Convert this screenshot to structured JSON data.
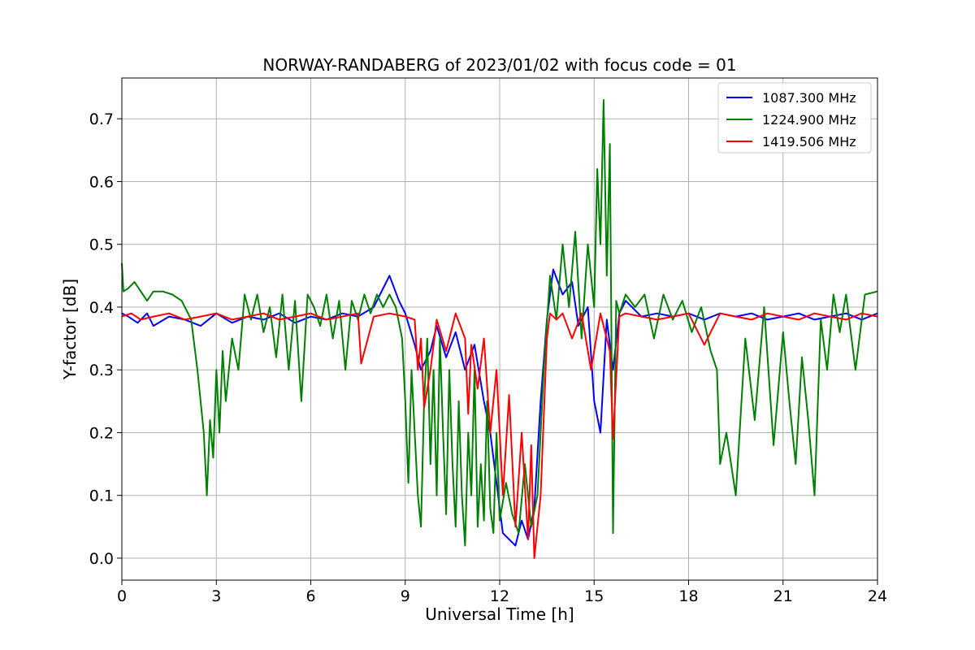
{
  "chart_data": {
    "type": "line",
    "title": "NORWAY-RANDABERG of 2023/01/02 with focus code = 01",
    "xlabel": "Universal Time [h]",
    "ylabel": "Y-factor [dB]",
    "xlim": [
      0,
      24
    ],
    "ylim": [
      -0.035,
      0.765
    ],
    "xticks": [
      0,
      3,
      6,
      9,
      12,
      15,
      18,
      21,
      24
    ],
    "xtick_labels": [
      "0",
      "3",
      "6",
      "9",
      "12",
      "15",
      "18",
      "21",
      "24"
    ],
    "yticks": [
      0.0,
      0.1,
      0.2,
      0.3,
      0.4,
      0.5,
      0.6,
      0.7
    ],
    "ytick_labels": [
      "0.0",
      "0.1",
      "0.2",
      "0.3",
      "0.4",
      "0.5",
      "0.6",
      "0.7"
    ],
    "grid": true,
    "legend_position": "top-right",
    "series": [
      {
        "name": "1087.300 MHz",
        "color": "#0000ff",
        "x": [
          0,
          0.2,
          0.5,
          0.8,
          1.0,
          1.5,
          2.0,
          2.5,
          3.0,
          3.5,
          4.0,
          4.5,
          5.0,
          5.5,
          6.0,
          6.5,
          7.0,
          7.5,
          8.0,
          8.2,
          8.5,
          8.8,
          9.0,
          9.3,
          9.5,
          9.8,
          10.0,
          10.3,
          10.6,
          10.9,
          11.2,
          11.5,
          11.7,
          11.9,
          12.1,
          12.3,
          12.5,
          12.7,
          12.9,
          13.1,
          13.3,
          13.5,
          13.7,
          14.0,
          14.3,
          14.5,
          14.8,
          15.0,
          15.2,
          15.4,
          15.6,
          15.8,
          16.0,
          16.5,
          17.0,
          17.5,
          18.0,
          18.5,
          19.0,
          19.5,
          20.0,
          20.5,
          21.0,
          21.5,
          22.0,
          22.5,
          23.0,
          23.5,
          24.0
        ],
        "y": [
          0.39,
          0.385,
          0.375,
          0.39,
          0.37,
          0.385,
          0.38,
          0.37,
          0.39,
          0.375,
          0.385,
          0.38,
          0.39,
          0.375,
          0.385,
          0.38,
          0.39,
          0.385,
          0.4,
          0.42,
          0.45,
          0.41,
          0.39,
          0.34,
          0.3,
          0.33,
          0.37,
          0.32,
          0.36,
          0.3,
          0.34,
          0.25,
          0.2,
          0.12,
          0.04,
          0.03,
          0.02,
          0.06,
          0.03,
          0.08,
          0.25,
          0.38,
          0.46,
          0.42,
          0.44,
          0.37,
          0.4,
          0.25,
          0.2,
          0.38,
          0.3,
          0.39,
          0.41,
          0.385,
          0.39,
          0.385,
          0.39,
          0.38,
          0.39,
          0.385,
          0.39,
          0.38,
          0.385,
          0.39,
          0.38,
          0.385,
          0.39,
          0.38,
          0.39
        ]
      },
      {
        "name": "1224.900 MHz",
        "color": "#008000",
        "x": [
          0,
          0.05,
          0.2,
          0.4,
          0.6,
          0.8,
          1.0,
          1.3,
          1.6,
          1.9,
          2.2,
          2.4,
          2.5,
          2.6,
          2.7,
          2.8,
          2.9,
          3.0,
          3.1,
          3.2,
          3.3,
          3.5,
          3.7,
          3.9,
          4.1,
          4.3,
          4.5,
          4.7,
          4.9,
          5.1,
          5.3,
          5.5,
          5.7,
          5.9,
          6.1,
          6.3,
          6.5,
          6.7,
          6.9,
          7.1,
          7.3,
          7.5,
          7.7,
          7.9,
          8.1,
          8.3,
          8.5,
          8.7,
          8.9,
          9.0,
          9.1,
          9.2,
          9.3,
          9.4,
          9.5,
          9.6,
          9.7,
          9.8,
          9.9,
          10.0,
          10.1,
          10.2,
          10.3,
          10.4,
          10.5,
          10.6,
          10.7,
          10.8,
          10.9,
          11.0,
          11.1,
          11.2,
          11.3,
          11.4,
          11.5,
          11.6,
          11.7,
          11.8,
          11.9,
          12.0,
          12.2,
          12.4,
          12.6,
          12.8,
          13.0,
          13.2,
          13.4,
          13.6,
          13.8,
          14.0,
          14.2,
          14.4,
          14.6,
          14.8,
          15.0,
          15.1,
          15.2,
          15.3,
          15.4,
          15.5,
          15.6,
          15.7,
          15.8,
          16.0,
          16.3,
          16.6,
          16.9,
          17.2,
          17.5,
          17.8,
          18.1,
          18.4,
          18.7,
          18.9,
          19.0,
          19.2,
          19.5,
          19.8,
          20.1,
          20.4,
          20.7,
          21.0,
          21.2,
          21.4,
          21.6,
          21.8,
          22.0,
          22.2,
          22.4,
          22.6,
          22.8,
          23.0,
          23.3,
          23.6,
          24.0
        ],
        "y": [
          0.47,
          0.425,
          0.43,
          0.44,
          0.425,
          0.41,
          0.425,
          0.425,
          0.42,
          0.41,
          0.38,
          0.3,
          0.25,
          0.2,
          0.1,
          0.22,
          0.16,
          0.3,
          0.2,
          0.33,
          0.25,
          0.35,
          0.3,
          0.42,
          0.38,
          0.42,
          0.36,
          0.4,
          0.32,
          0.42,
          0.3,
          0.41,
          0.25,
          0.42,
          0.4,
          0.37,
          0.42,
          0.35,
          0.41,
          0.3,
          0.41,
          0.38,
          0.42,
          0.39,
          0.42,
          0.4,
          0.42,
          0.4,
          0.35,
          0.25,
          0.12,
          0.3,
          0.2,
          0.1,
          0.05,
          0.25,
          0.35,
          0.15,
          0.3,
          0.1,
          0.35,
          0.2,
          0.07,
          0.3,
          0.15,
          0.05,
          0.25,
          0.1,
          0.02,
          0.2,
          0.1,
          0.3,
          0.05,
          0.15,
          0.06,
          0.25,
          0.08,
          0.04,
          0.2,
          0.06,
          0.12,
          0.07,
          0.04,
          0.15,
          0.05,
          0.1,
          0.3,
          0.45,
          0.38,
          0.5,
          0.4,
          0.52,
          0.35,
          0.5,
          0.4,
          0.62,
          0.5,
          0.73,
          0.45,
          0.66,
          0.04,
          0.41,
          0.39,
          0.42,
          0.4,
          0.42,
          0.35,
          0.42,
          0.38,
          0.41,
          0.36,
          0.4,
          0.33,
          0.3,
          0.15,
          0.2,
          0.1,
          0.35,
          0.22,
          0.4,
          0.18,
          0.36,
          0.25,
          0.15,
          0.32,
          0.22,
          0.1,
          0.38,
          0.3,
          0.42,
          0.36,
          0.42,
          0.3,
          0.42,
          0.425
        ]
      },
      {
        "name": "1419.506 MHz",
        "color": "#ff0000",
        "x": [
          0,
          0.3,
          0.6,
          1.0,
          1.5,
          2.0,
          2.5,
          3.0,
          3.5,
          4.0,
          4.5,
          5.0,
          5.5,
          6.0,
          6.5,
          7.0,
          7.5,
          7.6,
          8.0,
          8.5,
          9.0,
          9.3,
          9.4,
          9.5,
          9.6,
          9.8,
          10.0,
          10.3,
          10.6,
          10.9,
          11.0,
          11.1,
          11.3,
          11.5,
          11.7,
          11.9,
          12.1,
          12.3,
          12.5,
          12.7,
          12.9,
          13.0,
          13.1,
          13.3,
          13.5,
          13.6,
          13.8,
          14.0,
          14.3,
          14.6,
          14.9,
          15.2,
          15.5,
          15.6,
          15.8,
          16.0,
          16.5,
          17.0,
          17.5,
          18.0,
          18.5,
          19.0,
          19.5,
          20.0,
          20.5,
          21.0,
          21.5,
          22.0,
          22.5,
          23.0,
          23.5,
          24.0
        ],
        "y": [
          0.385,
          0.39,
          0.38,
          0.385,
          0.39,
          0.38,
          0.385,
          0.39,
          0.38,
          0.385,
          0.39,
          0.38,
          0.385,
          0.39,
          0.38,
          0.385,
          0.39,
          0.31,
          0.385,
          0.39,
          0.385,
          0.38,
          0.3,
          0.35,
          0.24,
          0.3,
          0.38,
          0.33,
          0.39,
          0.35,
          0.23,
          0.34,
          0.27,
          0.35,
          0.2,
          0.3,
          0.1,
          0.26,
          0.05,
          0.2,
          0.03,
          0.18,
          0.0,
          0.1,
          0.35,
          0.39,
          0.38,
          0.39,
          0.35,
          0.39,
          0.3,
          0.39,
          0.33,
          0.19,
          0.385,
          0.39,
          0.385,
          0.38,
          0.385,
          0.39,
          0.34,
          0.39,
          0.385,
          0.38,
          0.39,
          0.385,
          0.38,
          0.39,
          0.385,
          0.38,
          0.39,
          0.385
        ]
      }
    ]
  }
}
